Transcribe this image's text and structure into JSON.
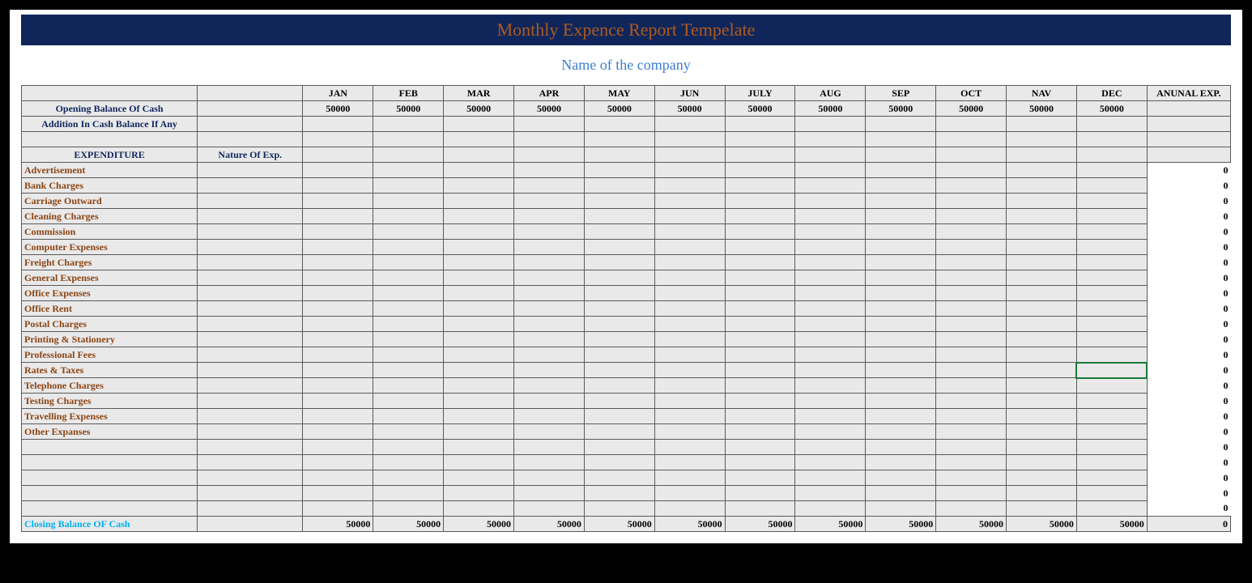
{
  "colors": {
    "page_bg": "#ffffff",
    "outer_bg": "#000000",
    "title_bar_bg": "#10265b",
    "title_text": "#b05a1c",
    "subtitle_text": "#3b7ed0",
    "header_blue": "#10265b",
    "expense_brown": "#8b4513",
    "closing_cyan": "#00b0f0",
    "cell_bg": "#e9e9ea",
    "border": "#5a5a5a",
    "selection": "#1a7a3a"
  },
  "title": "Monthly  Expence Report Tempelate",
  "subtitle": "Name of the company",
  "months": [
    "JAN",
    "FEB",
    "MAR",
    "APR",
    "MAY",
    "JUN",
    "JULY",
    "AUG",
    "SEP",
    "OCT",
    "NAV",
    "DEC"
  ],
  "annual_header": "ANUNAL EXP.",
  "opening_balance_label": "Opening Balance Of Cash",
  "opening_balance_values": [
    "50000",
    "50000",
    "50000",
    "50000",
    "50000",
    "50000",
    "50000",
    "50000",
    "50000",
    "50000",
    "50000",
    "50000"
  ],
  "addition_label": "Addition In Cash Balance If Any",
  "expenditure_header": "EXPENDITURE",
  "nature_header": "Nature Of Exp.",
  "expense_rows": [
    "Advertisement",
    "Bank Charges",
    "Carriage Outward",
    "Cleaning Charges",
    "Commission",
    "Computer Expenses",
    "Freight Charges",
    "General Expenses",
    "Office Expenses",
    "Office Rent",
    "Postal Charges",
    "Printing & Stationery",
    "Professional Fees",
    "Rates & Taxes",
    "Telephone Charges",
    "Testing Charges",
    "Travelling Expenses",
    "Other Expanses",
    "",
    "",
    "",
    "",
    ""
  ],
  "annual_zero": "0",
  "closing_label": "Closing Balance OF Cash",
  "closing_values": [
    "50000",
    "50000",
    "50000",
    "50000",
    "50000",
    "50000",
    "50000",
    "50000",
    "50000",
    "50000",
    "50000",
    "50000"
  ],
  "closing_annual": "0",
  "selected_cell": {
    "row_index": 13,
    "month_index": 11
  }
}
